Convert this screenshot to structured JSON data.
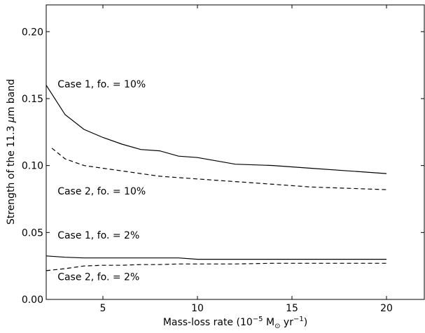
{
  "chart_data": {
    "type": "line",
    "xlabel_main": "Mass-loss rate (10",
    "xlabel_exp1": "−5",
    "xlabel_mid": " M",
    "xlabel_sun_sub": "⊙",
    "xlabel_yr": " yr",
    "xlabel_exp2": "−1",
    "xlabel_close": ")",
    "ylabel_pre": "Strength of the 11.3 ",
    "ylabel_mu": "μ",
    "ylabel_post": "m band",
    "xlim": [
      2,
      22
    ],
    "ylim": [
      0.0,
      0.22
    ],
    "x_ticks": [
      5,
      10,
      15,
      20
    ],
    "x_tick_labels": [
      "5",
      "10",
      "15",
      "20"
    ],
    "y_ticks": [
      0.0,
      0.05,
      0.1,
      0.15,
      0.2
    ],
    "y_tick_labels": [
      "0.00",
      "0.05",
      "0.10",
      "0.15",
      "0.20"
    ],
    "grid": false,
    "series": [
      {
        "style": "solid",
        "x": [
          2,
          3,
          4,
          5,
          6,
          7,
          8,
          9,
          10,
          12,
          14,
          16,
          18,
          20
        ],
        "y": [
          0.16,
          0.138,
          0.127,
          0.121,
          0.116,
          0.112,
          0.111,
          0.107,
          0.106,
          0.101,
          0.1,
          0.098,
          0.096,
          0.094
        ]
      },
      {
        "style": "dashed",
        "x": [
          2.3,
          3,
          4,
          5,
          6,
          7,
          8,
          9,
          10,
          12,
          14,
          16,
          18,
          20
        ],
        "y": [
          0.113,
          0.105,
          0.1,
          0.098,
          0.096,
          0.094,
          0.092,
          0.091,
          0.09,
          0.088,
          0.086,
          0.084,
          0.083,
          0.082
        ]
      },
      {
        "style": "solid",
        "x": [
          2,
          3,
          4,
          5,
          6,
          7,
          8,
          9,
          10,
          12,
          14,
          16,
          18,
          20
        ],
        "y": [
          0.0325,
          0.0315,
          0.031,
          0.031,
          0.031,
          0.031,
          0.031,
          0.031,
          0.03,
          0.03,
          0.03,
          0.03,
          0.03,
          0.03
        ]
      },
      {
        "style": "dashed",
        "x": [
          2,
          3,
          4,
          5,
          6,
          7,
          8,
          9,
          10,
          12,
          14,
          16,
          18,
          20
        ],
        "y": [
          0.0215,
          0.023,
          0.025,
          0.0255,
          0.0255,
          0.026,
          0.026,
          0.0265,
          0.0265,
          0.0265,
          0.027,
          0.027,
          0.027,
          0.027
        ]
      }
    ],
    "annotations": [
      {
        "text": "Case 1, fo. = 10%",
        "x": 2.6,
        "y": 0.161
      },
      {
        "text": "Case 2, fo. = 10%",
        "x": 2.6,
        "y": 0.081
      },
      {
        "text": "Case 1, fo. = 2%",
        "x": 2.6,
        "y": 0.048
      },
      {
        "text": "Case 2, fo. = 2%",
        "x": 2.6,
        "y": 0.017
      }
    ]
  }
}
